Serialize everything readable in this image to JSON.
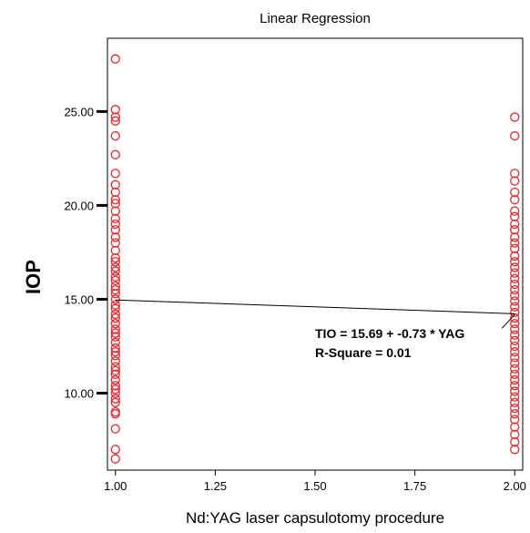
{
  "chart_data": {
    "type": "scatter",
    "title": "Linear Regression",
    "xlabel": "Nd:YAG laser capsulotomy procedure",
    "ylabel": "IOP",
    "xlim": [
      0.98,
      2.02
    ],
    "ylim": [
      5.9,
      28.9
    ],
    "xticks": [
      1.0,
      1.25,
      1.5,
      1.75,
      2.0
    ],
    "xtick_labels": [
      "1.00",
      "1.25",
      "1.50",
      "1.75",
      "2.00"
    ],
    "yticks": [
      10,
      15,
      20,
      25
    ],
    "ytick_labels": [
      "10.00",
      "15.00",
      "20.00",
      "25.00"
    ],
    "grid": false,
    "marker_color": "#e8262b",
    "line_color": "#000000",
    "series": [
      {
        "x": 1.0,
        "values": [
          27.8,
          25.1,
          24.7,
          24.5,
          23.7,
          22.7,
          21.7,
          21.1,
          20.7,
          20.3,
          20.1,
          19.7,
          19.3,
          19.0,
          18.7,
          18.3,
          18.0,
          17.6,
          17.2,
          17.0,
          16.7,
          16.5,
          16.2,
          16.0,
          15.7,
          15.5,
          15.3,
          15.0,
          14.7,
          14.5,
          14.2,
          14.0,
          13.7,
          13.4,
          13.2,
          13.0,
          12.7,
          12.4,
          12.2,
          12.0,
          11.7,
          11.4,
          11.2,
          11.0,
          10.7,
          10.4,
          10.2,
          10.0,
          9.7,
          9.5,
          9.0,
          8.9,
          8.1,
          7.0,
          6.5
        ]
      },
      {
        "x": 2.0,
        "values": [
          24.7,
          23.7,
          21.7,
          21.3,
          20.7,
          20.3,
          19.7,
          19.4,
          19.0,
          18.7,
          18.3,
          18.0,
          17.7,
          17.3,
          17.0,
          16.7,
          16.4,
          16.1,
          15.8,
          15.5,
          15.2,
          14.9,
          14.6,
          14.3,
          14.0,
          13.7,
          13.4,
          13.1,
          12.8,
          12.5,
          12.2,
          11.9,
          11.6,
          11.3,
          11.0,
          10.7,
          10.4,
          10.1,
          9.8,
          9.5,
          9.2,
          8.9,
          8.6,
          8.2,
          7.8,
          7.4,
          7.0
        ]
      }
    ],
    "regression": {
      "intercept": 15.69,
      "slope": -0.73,
      "equation_label": "TIO = 15.69 + -0.73 * YAG",
      "r2_label": "R-Square = 0.01"
    }
  }
}
